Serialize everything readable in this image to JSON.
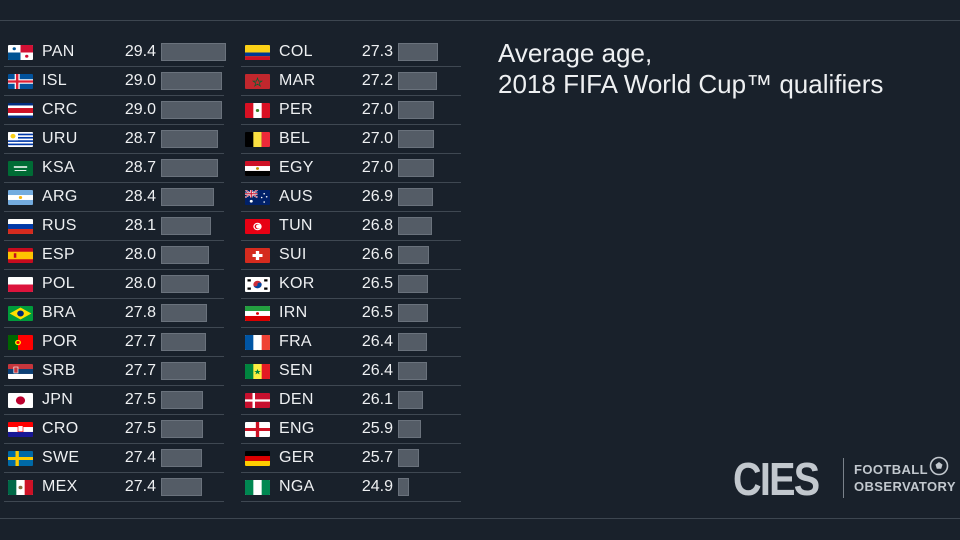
{
  "title": "Average age,\n2018 FIFA World Cup™ qualifiers",
  "logo": {
    "wordmark": "CIES",
    "line1": "FOOTBALL",
    "line2": "OBSERVATORY"
  },
  "chart_data": {
    "type": "bar",
    "title": "Average age,\n2018 FIFA World Cup™ qualifiers",
    "categories": [
      "PAN",
      "ISL",
      "CRC",
      "URU",
      "KSA",
      "ARG",
      "RUS",
      "ESP",
      "POL",
      "BRA",
      "POR",
      "SRB",
      "JPN",
      "CRO",
      "SWE",
      "MEX",
      "COL",
      "MAR",
      "PER",
      "BEL",
      "EGY",
      "AUS",
      "TUN",
      "SUI",
      "KOR",
      "IRN",
      "FRA",
      "SEN",
      "DEN",
      "ENG",
      "GER",
      "NGA"
    ],
    "values": [
      29.4,
      29.0,
      29.0,
      28.7,
      28.7,
      28.4,
      28.1,
      28.0,
      28.0,
      27.8,
      27.7,
      27.7,
      27.5,
      27.5,
      27.4,
      27.4,
      27.3,
      27.2,
      27.0,
      27.0,
      27.0,
      26.9,
      26.8,
      26.6,
      26.5,
      26.5,
      26.4,
      26.4,
      26.1,
      25.9,
      25.7,
      24.9
    ],
    "value_labels": [
      "29.4",
      "29.0",
      "29.0",
      "28.7",
      "28.7",
      "28.4",
      "28.1",
      "28.0",
      "28.0",
      "27.8",
      "27.7",
      "27.7",
      "27.5",
      "27.5",
      "27.4",
      "27.4",
      "27.3",
      "27.2",
      "27.0",
      "27.0",
      "27.0",
      "26.9",
      "26.8",
      "26.6",
      "26.5",
      "26.5",
      "26.4",
      "26.4",
      "26.1",
      "25.9",
      "25.7",
      "24.9"
    ],
    "flags": [
      "pan",
      "isl",
      "crc",
      "uru",
      "ksa",
      "arg",
      "rus",
      "esp",
      "pol",
      "bra",
      "por",
      "srb",
      "jpn",
      "cro",
      "swe",
      "mex",
      "col",
      "mar",
      "per",
      "bel",
      "egy",
      "aus",
      "tun",
      "sui",
      "kor",
      "irn",
      "fra",
      "sen",
      "den",
      "eng",
      "ger",
      "nga"
    ],
    "bar_color": "#545c66",
    "background": "#19212b"
  }
}
